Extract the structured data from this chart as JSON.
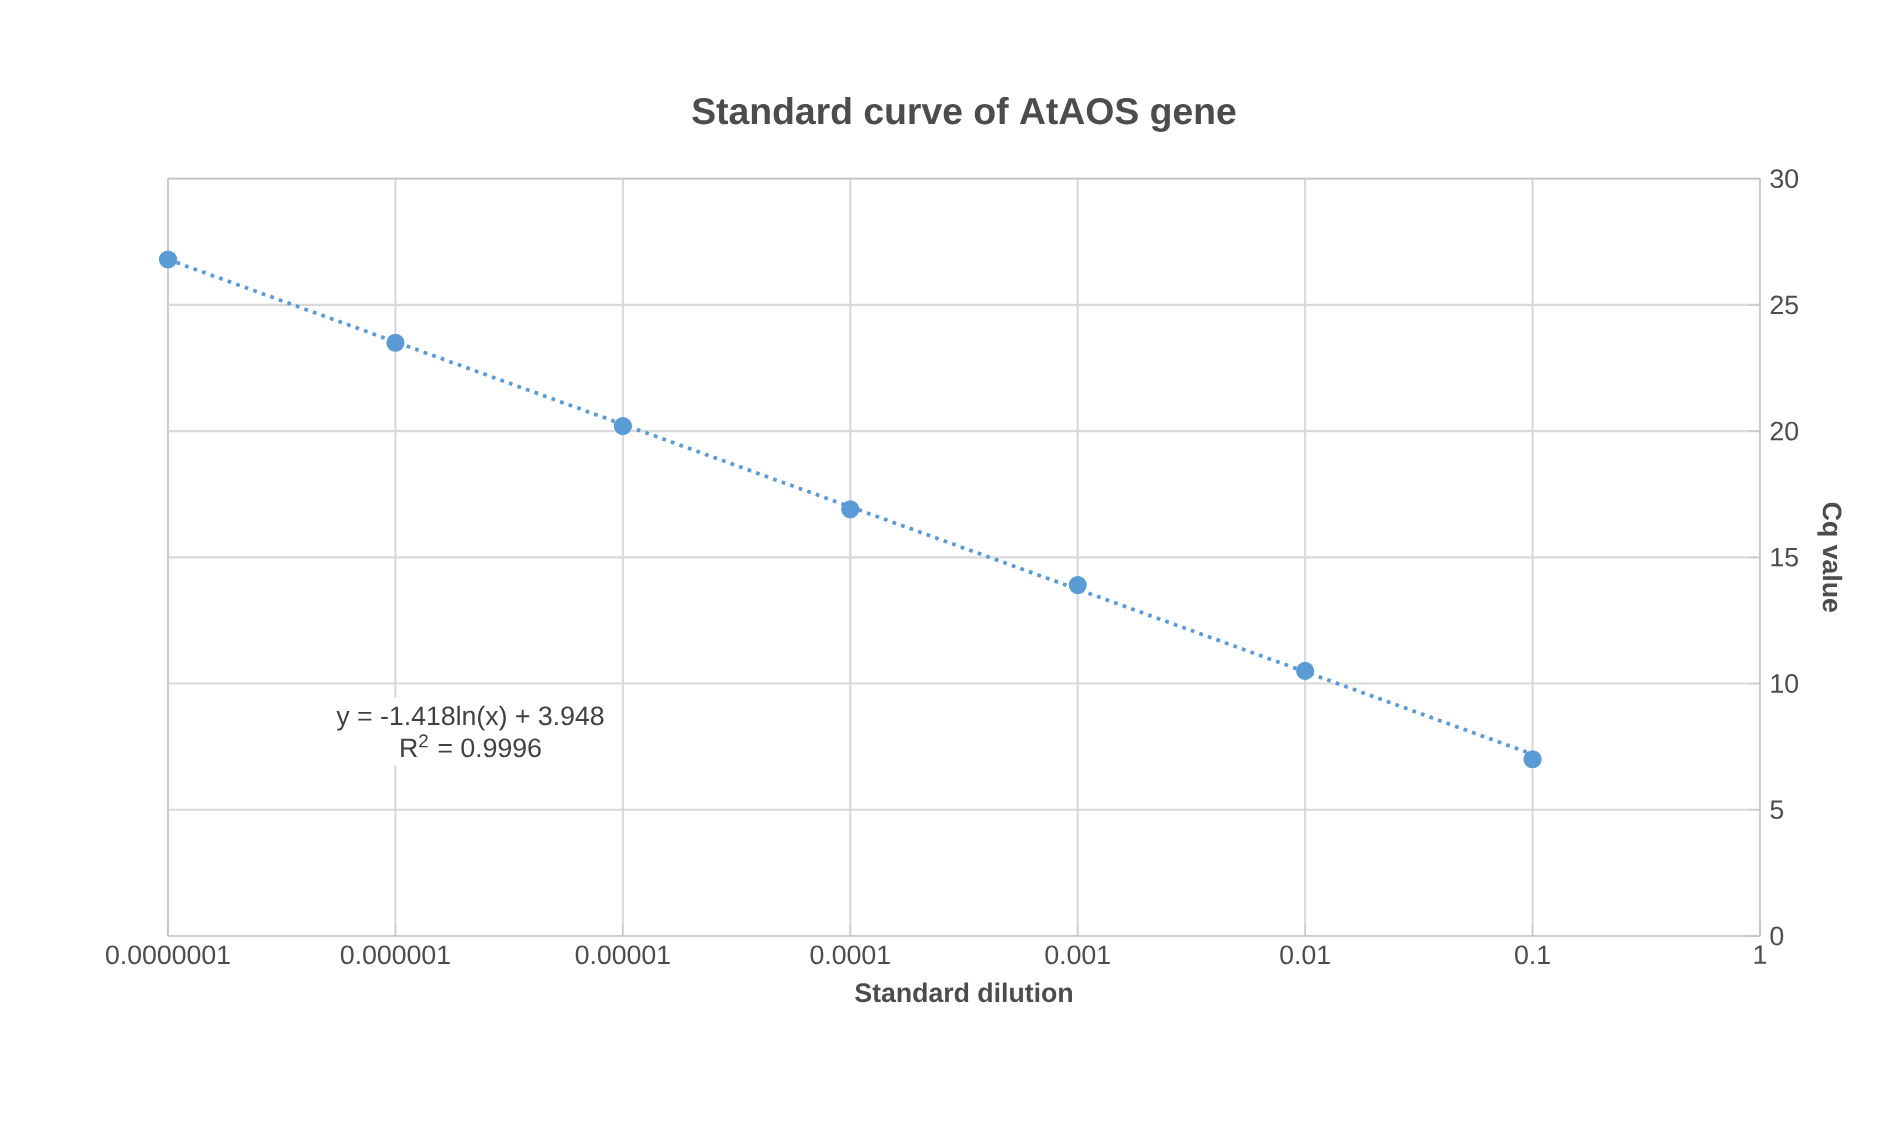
{
  "chart_data": {
    "type": "scatter",
    "title": "Standard curve of AtAOS gene",
    "xlabel": "Standard dilution",
    "ylabel": "Cq value",
    "series": [
      {
        "x": [
          1e-07,
          1e-06,
          1e-05,
          0.0001,
          0.001,
          0.01,
          0.1
        ],
        "values": [
          26.8,
          23.5,
          20.2,
          16.9,
          13.9,
          10.5,
          7.0
        ],
        "color": "#5b9bd5",
        "marker": "circle"
      },
      {
        "type": "line",
        "x": [
          1e-07,
          0.1
        ],
        "values": [
          26.8,
          7.2
        ],
        "color": "#5b9bd5",
        "marker": "none",
        "line_style": "dotted"
      }
    ],
    "annotations": [
      "y = -1.418ln(x) + 3.948",
      "R$^{2}$ = 0.9996"
    ],
    "log": "x",
    "xlim": [
      1e-07,
      1
    ],
    "ylim": [
      0,
      30
    ],
    "xticks": [
      {
        "value": 1e-07,
        "label": "0.0000001"
      },
      {
        "value": 1e-06,
        "label": "0.000001"
      },
      {
        "value": 1e-05,
        "label": "0.00001"
      },
      {
        "value": 0.0001,
        "label": "0.0001"
      },
      {
        "value": 0.001,
        "label": "0.001"
      },
      {
        "value": 0.01,
        "label": "0.01"
      },
      {
        "value": 0.1,
        "label": "0.1"
      },
      {
        "value": 1,
        "label": "1"
      }
    ],
    "yticks": [
      0,
      5,
      10,
      15,
      20,
      25,
      30
    ],
    "grid": true
  }
}
